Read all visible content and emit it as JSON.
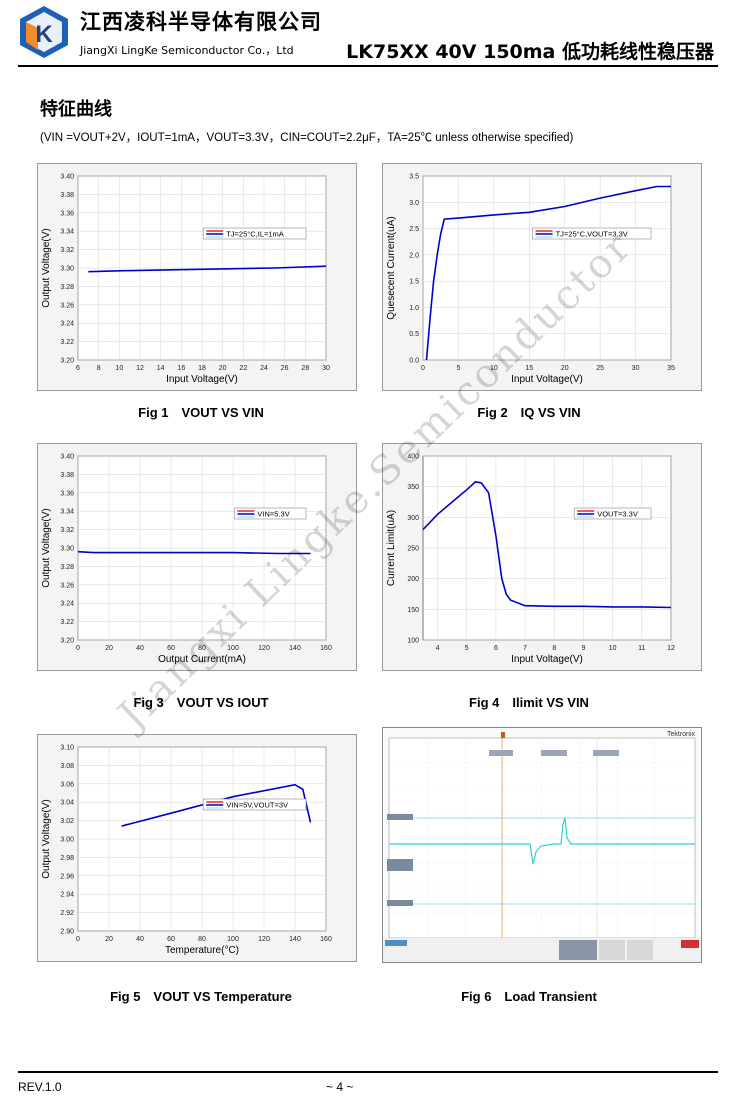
{
  "header": {
    "company_cn": "江西凌科半导体有限公司",
    "company_en": "JiangXi LingKe Semiconductor Co.，Ltd",
    "doc_title": "LK75XX 40V 150ma 低功耗线性稳压器",
    "logo_letter": "K"
  },
  "section": {
    "title": "特征曲线",
    "conditions": "(VIN =VOUT+2V，IOUT=1mA，VOUT=3.3V，CIN=COUT=2.2μF，TA=25℃ unless otherwise specified)"
  },
  "watermark": "Jiangxi Lingke.Semiconductor",
  "colors": {
    "line": "#0000cc",
    "legend_red": "#dd0000",
    "scope_trace": "#33ccdd"
  },
  "charts": [
    {
      "caption": "Fig 1　VOUT VS VIN",
      "chart_data": {
        "type": "line",
        "xlabel": "Input Voltage(V)",
        "ylabel": "Output Voltage(V)",
        "xlim": [
          6,
          30
        ],
        "ylim": [
          3.2,
          3.4
        ],
        "xticks": [
          "6",
          "8",
          "10",
          "12",
          "14",
          "16",
          "18",
          "20",
          "22",
          "24",
          "26",
          "28",
          "30"
        ],
        "yticks": [
          "3.20",
          "3.22",
          "3.24",
          "3.26",
          "3.28",
          "3.30",
          "3.32",
          "3.34",
          "3.36",
          "3.38",
          "3.40"
        ],
        "series": [
          {
            "name": "TJ=25°C,IL=1mA",
            "x": [
              7,
              10,
              15,
              20,
              25,
              30
            ],
            "y": [
              3.296,
              3.297,
              3.298,
              3.299,
              3.3,
              3.302
            ]
          }
        ],
        "legend": "top-right"
      }
    },
    {
      "caption": "Fig 2　IQ VS VIN",
      "chart_data": {
        "type": "line",
        "xlabel": "Input Voltage(V)",
        "ylabel": "Quesecent Current(uA)",
        "xlim": [
          0,
          35
        ],
        "ylim": [
          0,
          3.5
        ],
        "xticks": [
          "0",
          "5",
          "10",
          "15",
          "20",
          "25",
          "30",
          "35"
        ],
        "yticks": [
          "0.0",
          "0.5",
          "1.0",
          "1.5",
          "2.0",
          "2.5",
          "3.0",
          "3.5"
        ],
        "series": [
          {
            "name": "TJ=25°C,VOUT=3.3V",
            "x": [
              0.5,
              1,
              1.5,
              2,
              2.5,
              3,
              5,
              10,
              15,
              20,
              25,
              30,
              33,
              35
            ],
            "y": [
              0,
              0.8,
              1.5,
              2.0,
              2.4,
              2.68,
              2.7,
              2.76,
              2.81,
              2.92,
              3.08,
              3.22,
              3.3,
              3.3
            ]
          }
        ],
        "legend": "top-right"
      }
    },
    {
      "caption": "Fig 3　VOUT VS IOUT",
      "chart_data": {
        "type": "line",
        "xlabel": "Output Current(mA)",
        "ylabel": "Output Voltage(V)",
        "xlim": [
          0,
          160
        ],
        "ylim": [
          3.2,
          3.4
        ],
        "xticks": [
          "0",
          "20",
          "40",
          "60",
          "80",
          "100",
          "120",
          "140",
          "160"
        ],
        "yticks": [
          "3.20",
          "3.22",
          "3.24",
          "3.26",
          "3.28",
          "3.30",
          "3.32",
          "3.34",
          "3.36",
          "3.38",
          "3.40"
        ],
        "series": [
          {
            "name": "VIN=5.3V",
            "x": [
              0,
              10,
              50,
              100,
              130,
              150
            ],
            "y": [
              3.296,
              3.295,
              3.295,
              3.295,
              3.294,
              3.294
            ]
          }
        ],
        "legend": "top-right"
      }
    },
    {
      "caption": "Fig 4　Ilimit VS VIN",
      "chart_data": {
        "type": "line",
        "xlabel": "Input Voltage(V)",
        "ylabel": "Current Limit(uA)",
        "xlim": [
          3.5,
          12
        ],
        "ylim": [
          100,
          400
        ],
        "xticks": [
          "4",
          "5",
          "6",
          "7",
          "8",
          "9",
          "10",
          "11",
          "12"
        ],
        "yticks": [
          "100",
          "150",
          "200",
          "250",
          "300",
          "350",
          "400"
        ],
        "series": [
          {
            "name": "VOUT=3.3V",
            "x": [
              3.5,
              4,
              4.5,
              5,
              5.3,
              5.5,
              5.75,
              6,
              6.2,
              6.35,
              6.5,
              7,
              8,
              9,
              10,
              11,
              12
            ],
            "y": [
              280,
              305,
              325,
              345,
              358,
              356,
              340,
              270,
              200,
              175,
              165,
              156,
              155,
              155,
              154,
              154,
              153
            ]
          }
        ],
        "legend": "top-right"
      }
    },
    {
      "caption": "Fig 5　VOUT VS Temperature",
      "chart_data": {
        "type": "line",
        "xlabel": "Temperature(°C)",
        "ylabel": "Output Voltage(V)",
        "xlim": [
          0,
          160
        ],
        "ylim": [
          2.9,
          3.1
        ],
        "xticks": [
          "0",
          "20",
          "40",
          "60",
          "80",
          "100",
          "120",
          "140",
          "160"
        ],
        "yticks": [
          "2.90",
          "2.92",
          "2.94",
          "2.96",
          "2.98",
          "3.00",
          "3.02",
          "3.04",
          "3.06",
          "3.08",
          "3.10"
        ],
        "series": [
          {
            "name": "VIN=5V,VOUT=3V",
            "x": [
              28,
              60,
              100,
              140,
              145,
              150
            ],
            "y": [
              3.014,
              3.028,
              3.046,
              3.059,
              3.054,
              3.018
            ]
          }
        ],
        "legend": "top-right"
      }
    }
  ],
  "fig6": {
    "caption": "Fig 6　Load Transient",
    "brand": "Tektronix"
  },
  "footer": {
    "rev": "REV.1.0",
    "page": "~ 4 ~"
  }
}
